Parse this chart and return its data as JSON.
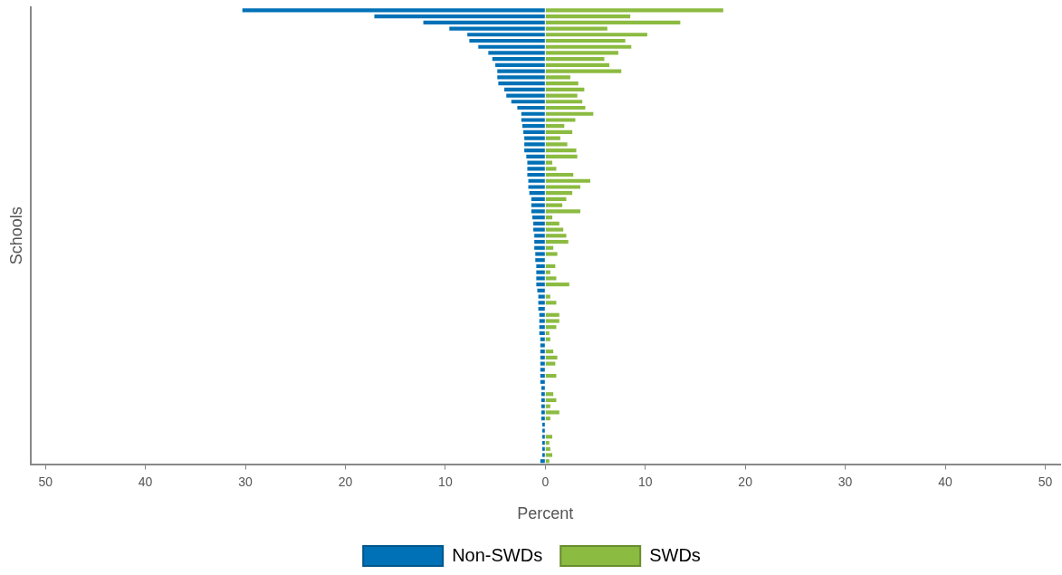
{
  "chart_data": {
    "type": "bar",
    "orientation": "horizontal",
    "stacked": true,
    "xlabel": "Percent",
    "ylabel": "Schools",
    "legend": "bottom",
    "grid": false,
    "tick_labels": "x",
    "categories": [
      null,
      null,
      null,
      null,
      null,
      null,
      null,
      null,
      null,
      null,
      null,
      null,
      null,
      null,
      null,
      null,
      null,
      null,
      null,
      null,
      null,
      null,
      null,
      null,
      null,
      null,
      null,
      null,
      null,
      null,
      null,
      null,
      null,
      null,
      null,
      null,
      null,
      null,
      null,
      null,
      null,
      null,
      null,
      null,
      null,
      null,
      null,
      null,
      null,
      null,
      null,
      null,
      null,
      null,
      null,
      null,
      null,
      null,
      null,
      null,
      null,
      null,
      null,
      null,
      null,
      null,
      null,
      null,
      null,
      null,
      null,
      null,
      null,
      null,
      null
    ],
    "xlim": [
      -51.5,
      51.5
    ],
    "xticks": [
      {
        "value": -50,
        "label": "50"
      },
      {
        "value": -40,
        "label": "40"
      },
      {
        "value": -30,
        "label": "30"
      },
      {
        "value": -20,
        "label": "20"
      },
      {
        "value": -10,
        "label": "10"
      },
      0,
      10,
      20,
      30,
      40,
      50
    ],
    "series": [
      {
        "name": "Non-SWDs",
        "color": "#0071b6",
        "values": [
          -30.3,
          -17.1,
          -12.2,
          -9.6,
          -7.8,
          -7.6,
          -6.7,
          -5.7,
          -5.3,
          -5.0,
          -4.8,
          -4.8,
          -4.7,
          -4.1,
          -3.9,
          -3.4,
          -2.8,
          -2.4,
          -2.4,
          -2.3,
          -2.2,
          -2.1,
          -2.1,
          -2.1,
          -1.9,
          -1.8,
          -1.8,
          -1.8,
          -1.7,
          -1.7,
          -1.6,
          -1.4,
          -1.4,
          -1.4,
          -1.3,
          -1.2,
          -1.2,
          -1.1,
          -1.1,
          -1.1,
          -1.0,
          -1.0,
          -0.9,
          -0.9,
          -0.9,
          -0.9,
          -0.8,
          -0.7,
          -0.7,
          -0.7,
          -0.6,
          -0.6,
          -0.6,
          -0.6,
          -0.5,
          -0.5,
          -0.5,
          -0.5,
          -0.5,
          -0.5,
          -0.5,
          -0.5,
          -0.4,
          -0.4,
          -0.4,
          -0.4,
          -0.4,
          -0.4,
          -0.3,
          -0.3,
          -0.3,
          -0.3,
          -0.3,
          -0.3,
          -0.5
        ]
      },
      {
        "name": "SWDs",
        "color": "#8bbb40",
        "values": [
          17.8,
          8.5,
          13.5,
          6.2,
          10.2,
          8.0,
          8.6,
          7.3,
          5.9,
          6.4,
          7.6,
          2.5,
          3.3,
          3.9,
          3.2,
          3.7,
          4.0,
          4.8,
          3.0,
          1.9,
          2.7,
          1.5,
          2.2,
          3.1,
          3.2,
          0.7,
          1.1,
          2.8,
          4.5,
          3.5,
          2.7,
          2.1,
          1.7,
          3.5,
          0.7,
          1.4,
          1.8,
          2.1,
          2.3,
          0.8,
          1.2,
          null,
          1.0,
          0.5,
          1.1,
          2.4,
          null,
          0.5,
          1.1,
          null,
          1.4,
          1.4,
          1.1,
          0.4,
          0.5,
          null,
          0.8,
          1.2,
          1.0,
          null,
          1.1,
          null,
          null,
          0.8,
          1.1,
          0.5,
          1.4,
          0.5,
          null,
          null,
          0.7,
          0.4,
          0.5,
          0.7,
          0.4
        ]
      }
    ]
  }
}
